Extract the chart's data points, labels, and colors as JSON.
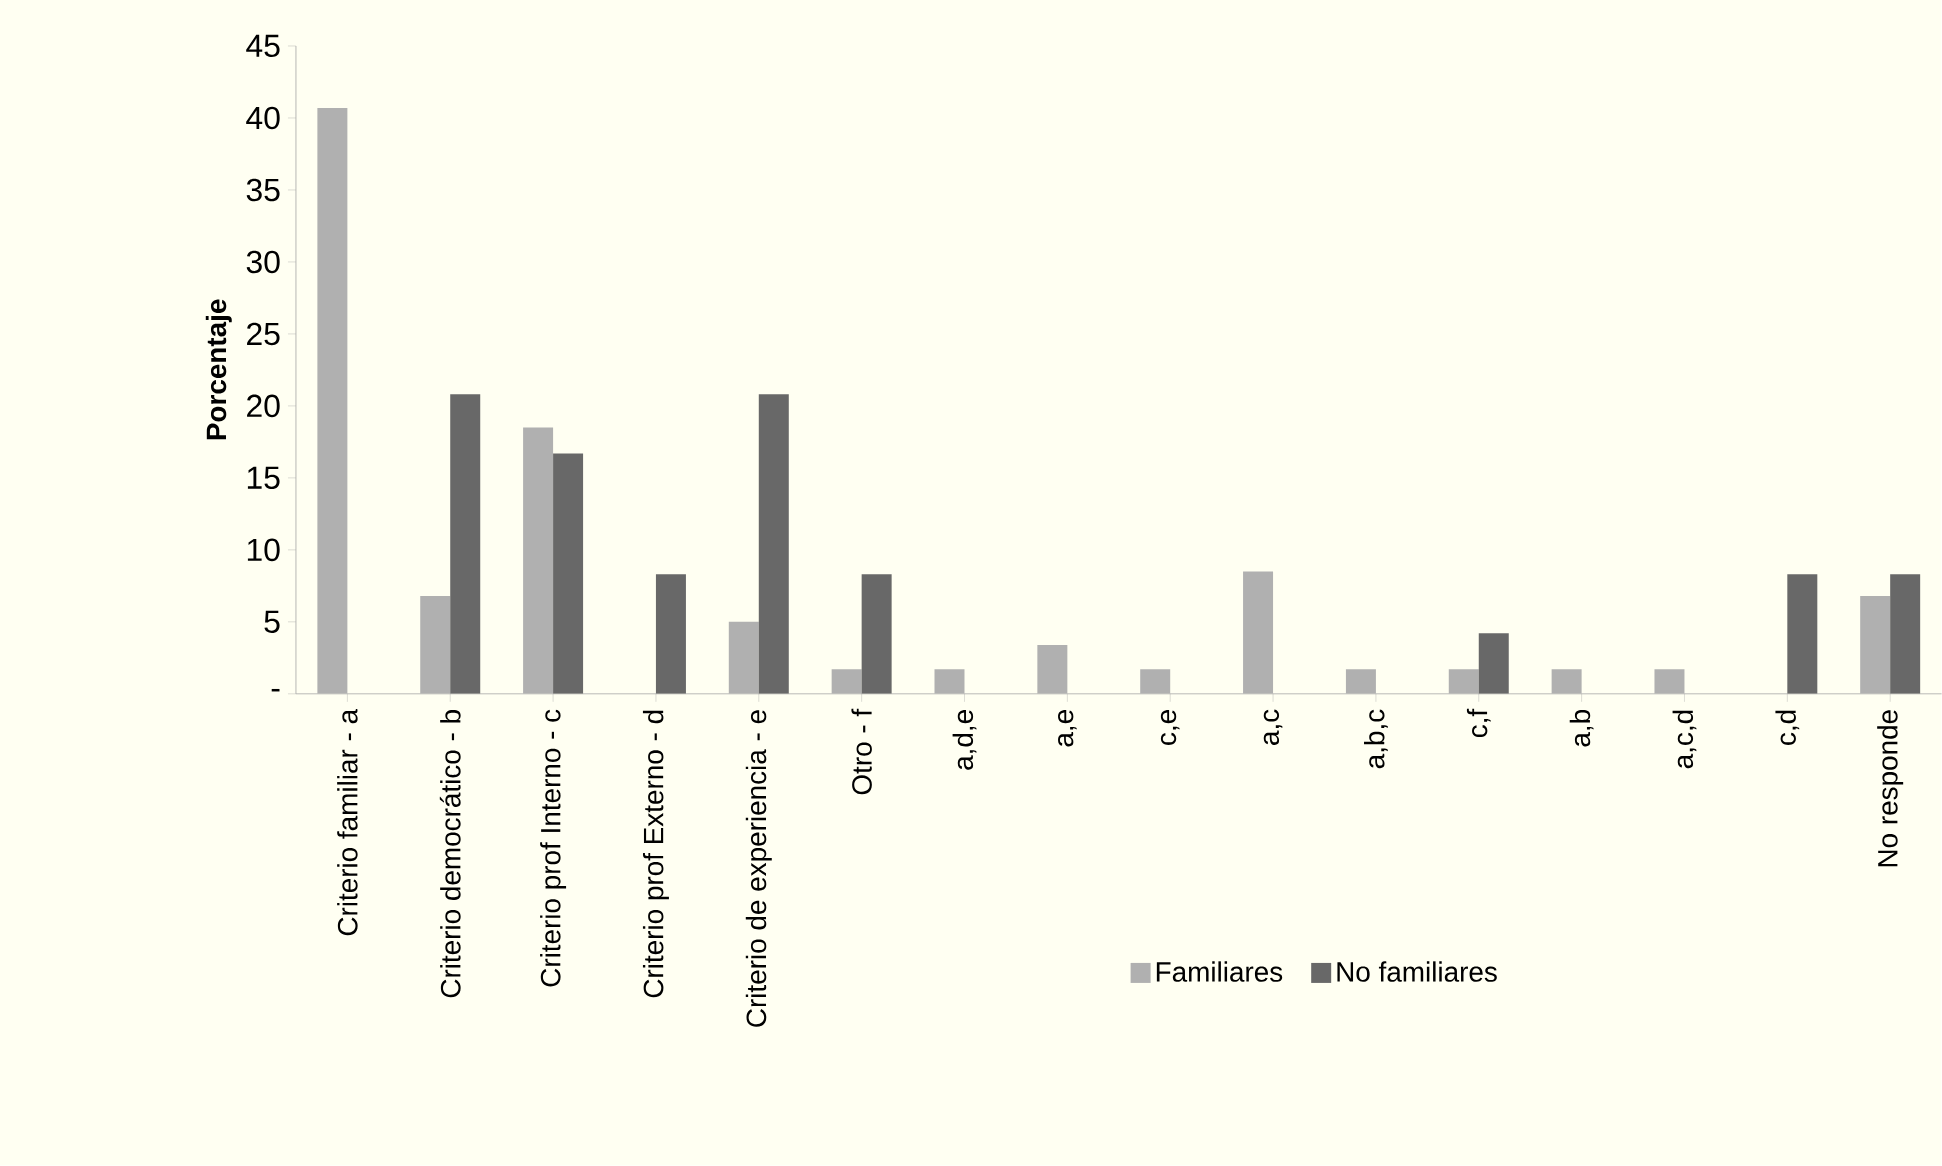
{
  "chart_data": {
    "type": "bar",
    "ylabel": "Porcentaje",
    "categories": [
      "Criterio familiar - a",
      "Criterio democrático - b",
      "Criterio prof Interno - c",
      "Criterio prof Externo - d",
      "Criterio de experiencia - e",
      "Otro - f",
      "a,d,e",
      "a,e",
      "c,e",
      "a,c",
      "a,b,c",
      "c,f",
      "a,b",
      "a,c,d",
      "c,d",
      "No responde"
    ],
    "series": [
      {
        "name": "Familiares",
        "color": "#b0b0b0",
        "values": [
          40.7,
          6.8,
          18.5,
          0,
          5.0,
          1.7,
          1.7,
          3.4,
          1.7,
          8.5,
          1.7,
          1.7,
          1.7,
          1.7,
          0,
          6.8
        ]
      },
      {
        "name": "No familiares",
        "color": "#686868",
        "values": [
          0,
          20.8,
          16.7,
          8.3,
          20.8,
          8.3,
          0,
          0,
          0,
          0,
          0,
          4.2,
          0,
          0,
          8.3,
          8.3
        ]
      }
    ],
    "ylim": [
      0,
      45
    ],
    "yticks": [
      {
        "value": 0,
        "label": "-"
      },
      5,
      10,
      15,
      20,
      25,
      30,
      35,
      40,
      45
    ],
    "grid": false,
    "legend": "bottom"
  }
}
